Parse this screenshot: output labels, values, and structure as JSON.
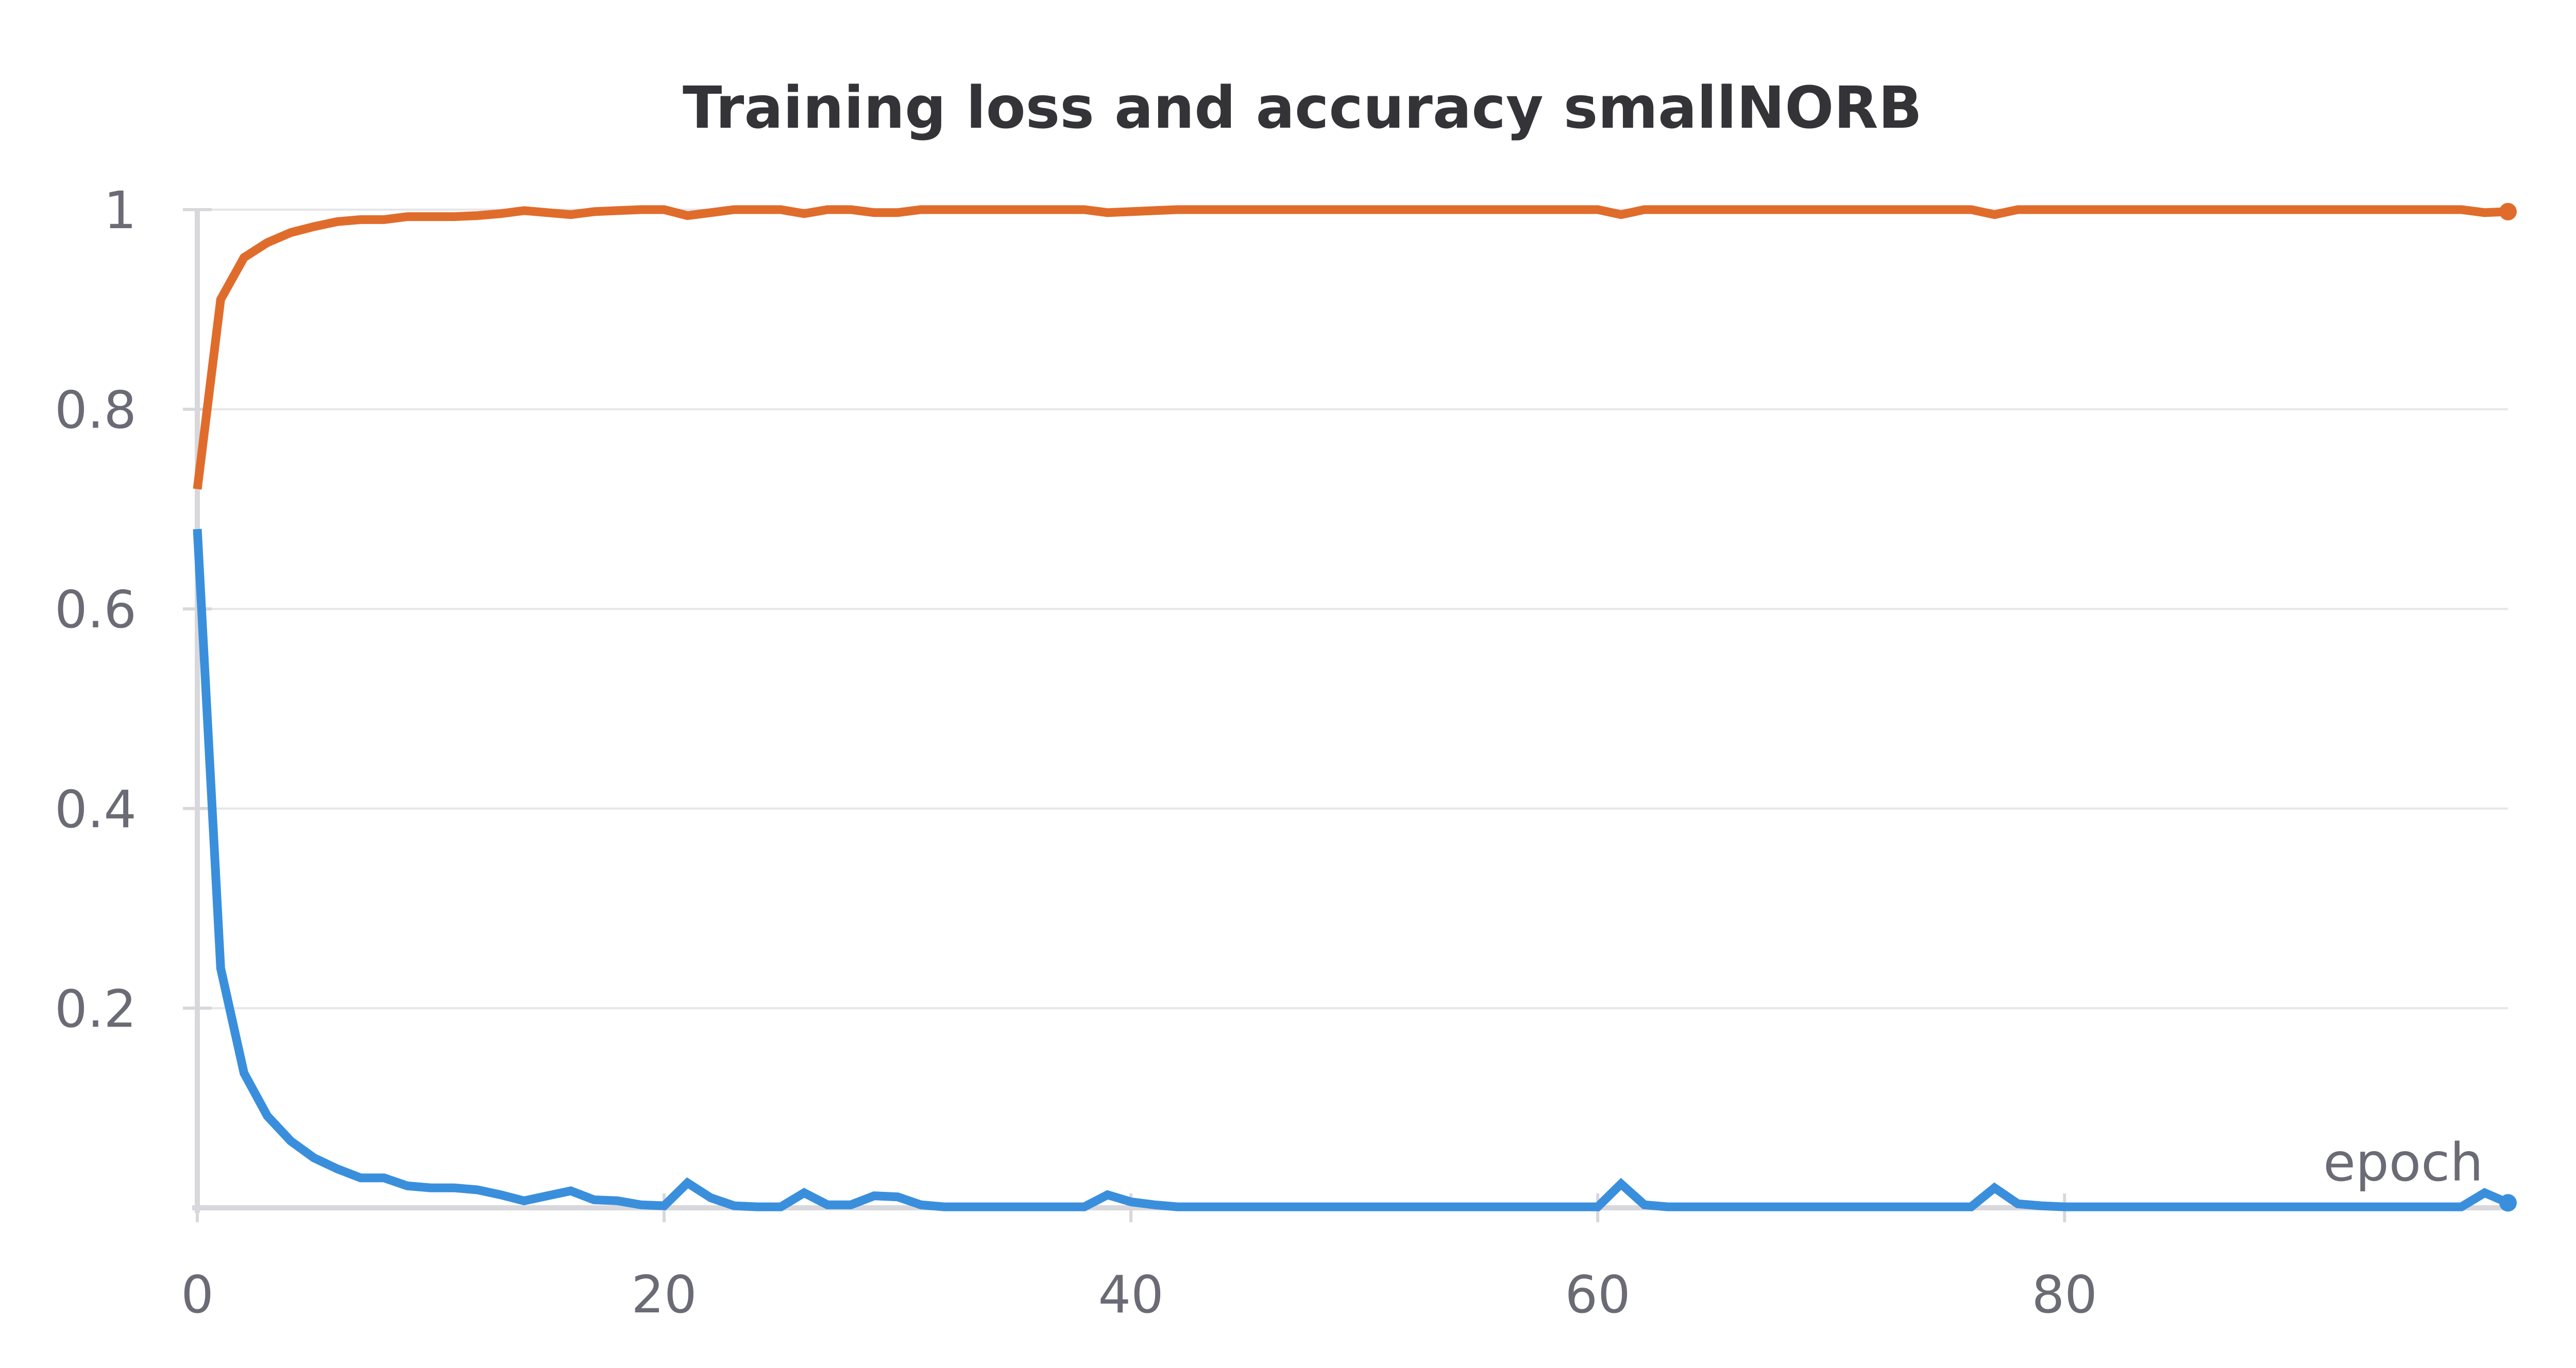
{
  "chart_data": {
    "type": "line",
    "title": "Training loss and accuracy smallNORB",
    "xlabel": "epoch",
    "ylabel": "",
    "xlim": [
      0,
      99
    ],
    "ylim": [
      0,
      1
    ],
    "x_ticks": [
      "0",
      "20",
      "40",
      "60",
      "80"
    ],
    "x_tick_values": [
      0,
      20,
      40,
      60,
      80
    ],
    "y_ticks": [
      "0.2",
      "0.4",
      "0.6",
      "0.8",
      "1"
    ],
    "y_tick_values": [
      0.2,
      0.4,
      0.6,
      0.8,
      1
    ],
    "grid": "horizontal",
    "legend": "none",
    "series": [
      {
        "color": "#e06c2c",
        "x": [
          0,
          1,
          2,
          3,
          4,
          5,
          6,
          7,
          8,
          9,
          10,
          11,
          12,
          13,
          14,
          15,
          16,
          17,
          18,
          19,
          20,
          21,
          22,
          23,
          24,
          25,
          26,
          27,
          28,
          29,
          30,
          31,
          32,
          33,
          34,
          35,
          36,
          37,
          38,
          39,
          40,
          41,
          42,
          43,
          44,
          45,
          46,
          47,
          48,
          49,
          50,
          51,
          52,
          53,
          54,
          55,
          56,
          57,
          58,
          59,
          60,
          61,
          62,
          63,
          64,
          65,
          66,
          67,
          68,
          69,
          70,
          71,
          72,
          73,
          74,
          75,
          76,
          77,
          78,
          79,
          80,
          81,
          82,
          83,
          84,
          85,
          86,
          87,
          88,
          89,
          90,
          91,
          92,
          93,
          94,
          95,
          96,
          97,
          98,
          99
        ],
        "y": [
          0.72,
          0.91,
          0.952,
          0.967,
          0.977,
          0.983,
          0.988,
          0.99,
          0.99,
          0.993,
          0.993,
          0.993,
          0.994,
          0.996,
          0.999,
          0.997,
          0.995,
          0.998,
          0.999,
          1.0,
          1.0,
          0.994,
          0.997,
          1.0,
          1.0,
          1.0,
          0.996,
          1.0,
          1.0,
          0.997,
          0.997,
          1.0,
          1.0,
          1.0,
          1.0,
          1.0,
          1.0,
          1.0,
          1.0,
          0.997,
          0.998,
          0.999,
          1.0,
          1.0,
          1.0,
          1.0,
          1.0,
          1.0,
          1.0,
          1.0,
          1.0,
          1.0,
          1.0,
          1.0,
          1.0,
          1.0,
          1.0,
          1.0,
          1.0,
          1.0,
          1.0,
          0.995,
          1.0,
          1.0,
          1.0,
          1.0,
          1.0,
          1.0,
          1.0,
          1.0,
          1.0,
          1.0,
          1.0,
          1.0,
          1.0,
          1.0,
          1.0,
          0.995,
          1.0,
          1.0,
          1.0,
          1.0,
          1.0,
          1.0,
          1.0,
          1.0,
          1.0,
          1.0,
          1.0,
          1.0,
          1.0,
          1.0,
          1.0,
          1.0,
          1.0,
          1.0,
          1.0,
          1.0,
          0.997,
          0.998
        ]
      },
      {
        "color": "#3a8fdc",
        "x": [
          0,
          1,
          2,
          3,
          4,
          5,
          6,
          7,
          8,
          9,
          10,
          11,
          12,
          13,
          14,
          15,
          16,
          17,
          18,
          19,
          20,
          21,
          22,
          23,
          24,
          25,
          26,
          27,
          28,
          29,
          30,
          31,
          32,
          33,
          34,
          35,
          36,
          37,
          38,
          39,
          40,
          41,
          42,
          43,
          44,
          45,
          46,
          47,
          48,
          49,
          50,
          51,
          52,
          53,
          54,
          55,
          56,
          57,
          58,
          59,
          60,
          61,
          62,
          63,
          64,
          65,
          66,
          67,
          68,
          69,
          70,
          71,
          72,
          73,
          74,
          75,
          76,
          77,
          78,
          79,
          80,
          81,
          82,
          83,
          84,
          85,
          86,
          87,
          88,
          89,
          90,
          91,
          92,
          93,
          94,
          95,
          96,
          97,
          98,
          99
        ],
        "y": [
          0.68,
          0.24,
          0.135,
          0.092,
          0.067,
          0.05,
          0.039,
          0.03,
          0.03,
          0.022,
          0.02,
          0.02,
          0.018,
          0.013,
          0.007,
          0.012,
          0.017,
          0.008,
          0.007,
          0.003,
          0.002,
          0.025,
          0.01,
          0.002,
          0.001,
          0.001,
          0.015,
          0.003,
          0.003,
          0.012,
          0.011,
          0.003,
          0.001,
          0.001,
          0.001,
          0.001,
          0.001,
          0.001,
          0.001,
          0.013,
          0.006,
          0.003,
          0.001,
          0.001,
          0.001,
          0.001,
          0.001,
          0.001,
          0.001,
          0.001,
          0.001,
          0.001,
          0.001,
          0.001,
          0.001,
          0.001,
          0.001,
          0.001,
          0.001,
          0.001,
          0.001,
          0.024,
          0.003,
          0.001,
          0.001,
          0.001,
          0.001,
          0.001,
          0.001,
          0.001,
          0.001,
          0.001,
          0.001,
          0.001,
          0.001,
          0.001,
          0.001,
          0.02,
          0.004,
          0.002,
          0.001,
          0.001,
          0.001,
          0.001,
          0.001,
          0.001,
          0.001,
          0.001,
          0.001,
          0.001,
          0.001,
          0.001,
          0.001,
          0.001,
          0.001,
          0.001,
          0.001,
          0.001,
          0.015,
          0.005
        ]
      }
    ]
  }
}
